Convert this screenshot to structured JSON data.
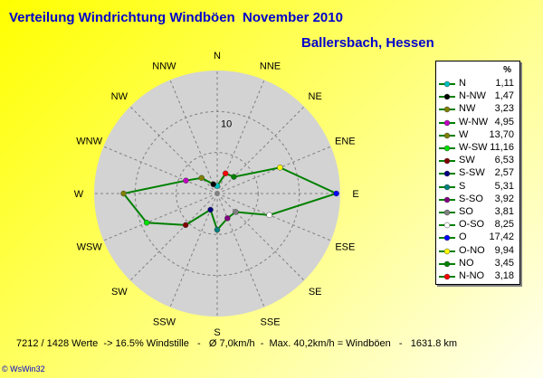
{
  "title": "Verteilung Windrichtung Windböen  November 2010",
  "subtitle": "Ballersbach, Hessen",
  "footer": "7212 / 1428 Werte  -> 16.5% Windstille   -   Ø 7,0km/h  -  Max. 40,2km/h = Windböen   -   1631.8 km",
  "credit": "© WsWin32",
  "legend_unit": "%",
  "colors": {
    "plot_bg": "#d3d3d3",
    "series_line": "#008000",
    "grid": "#808080",
    "label": "#000000"
  },
  "chart_data": {
    "type": "radar",
    "title": "Verteilung Windrichtung Windböen  November 2010",
    "subtitle": "Ballersbach, Hessen",
    "radial_max": 18,
    "radial_ticks": [
      {
        "value": 10,
        "label": "10"
      }
    ],
    "directions": [
      "N",
      "NNE",
      "NE",
      "ENE",
      "E",
      "ESE",
      "SE",
      "SSE",
      "S",
      "SSW",
      "SW",
      "WSW",
      "W",
      "WNW",
      "NW",
      "NNW"
    ],
    "series": [
      {
        "dir": "N",
        "legend": "N",
        "value": 1.11,
        "label": "1,11",
        "color": "#00c0c0"
      },
      {
        "dir": "NNW",
        "legend": "N-NW",
        "value": 1.47,
        "label": "1,47",
        "color": "#000000"
      },
      {
        "dir": "NW",
        "legend": "NW",
        "value": 3.23,
        "label": "3,23",
        "color": "#808000"
      },
      {
        "dir": "WNW",
        "legend": "W-NW",
        "value": 4.95,
        "label": "4,95",
        "color": "#c000c0"
      },
      {
        "dir": "W",
        "legend": "W",
        "value": 13.7,
        "label": "13,70",
        "color": "#808000"
      },
      {
        "dir": "WSW",
        "legend": "W-SW",
        "value": 11.16,
        "label": "11,16",
        "color": "#00e000"
      },
      {
        "dir": "SW",
        "legend": "SW",
        "value": 6.53,
        "label": "6,53",
        "color": "#800000"
      },
      {
        "dir": "SSW",
        "legend": "S-SW",
        "value": 2.57,
        "label": "2,57",
        "color": "#000080"
      },
      {
        "dir": "S",
        "legend": "S",
        "value": 5.31,
        "label": "5,31",
        "color": "#008080"
      },
      {
        "dir": "SSE",
        "legend": "S-SO",
        "value": 3.92,
        "label": "3,92",
        "color": "#800080"
      },
      {
        "dir": "SE",
        "legend": "SO",
        "value": 3.81,
        "label": "3,81",
        "color": "#808080"
      },
      {
        "dir": "ESE",
        "legend": "O-SO",
        "value": 8.25,
        "label": "8,25",
        "color": "#ffffff"
      },
      {
        "dir": "E",
        "legend": "O",
        "value": 17.42,
        "label": "17,42",
        "color": "#0000ff"
      },
      {
        "dir": "ENE",
        "legend": "O-NO",
        "value": 9.94,
        "label": "9,94",
        "color": "#ffff00"
      },
      {
        "dir": "NE",
        "legend": "NO",
        "value": 3.45,
        "label": "3,45",
        "color": "#008000"
      },
      {
        "dir": "NNE",
        "legend": "N-NO",
        "value": 3.18,
        "label": "3,18",
        "color": "#ff0000"
      }
    ]
  }
}
